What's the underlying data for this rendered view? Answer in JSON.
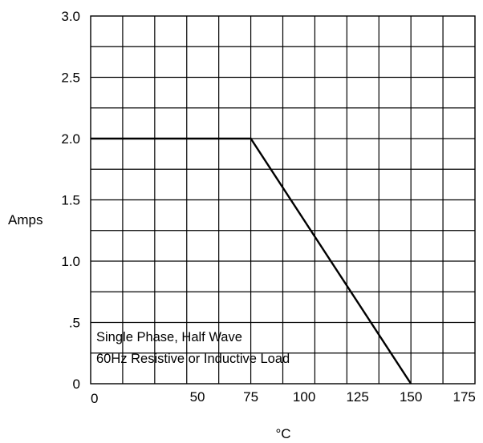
{
  "chart_data": {
    "type": "line",
    "title": "",
    "xlabel": "°C",
    "ylabel": "Amps",
    "xlim": [
      0,
      180
    ],
    "ylim": [
      0,
      3.0
    ],
    "x_ticks": [
      0,
      50,
      75,
      100,
      125,
      150,
      175
    ],
    "x_tick_labels": [
      "0",
      "50",
      "75",
      "100",
      "125",
      "150",
      "175"
    ],
    "y_ticks": [
      0,
      0.5,
      1.0,
      1.5,
      2.0,
      2.5,
      3.0
    ],
    "y_tick_labels": [
      "0",
      ".5",
      "1.0",
      "1.5",
      "2.0",
      "2.5",
      "3.0"
    ],
    "grid": true,
    "grid_x_step": 15,
    "grid_y_step": 0.25,
    "series": [
      {
        "x": [
          0,
          75,
          150
        ],
        "y": [
          2.0,
          2.0,
          0
        ]
      }
    ],
    "annotations": [
      "Single Phase, Half Wave",
      "60Hz Resistive or Inductive Load"
    ],
    "colors": {
      "line": "#000000",
      "grid": "#000000",
      "background": "#ffffff"
    }
  }
}
